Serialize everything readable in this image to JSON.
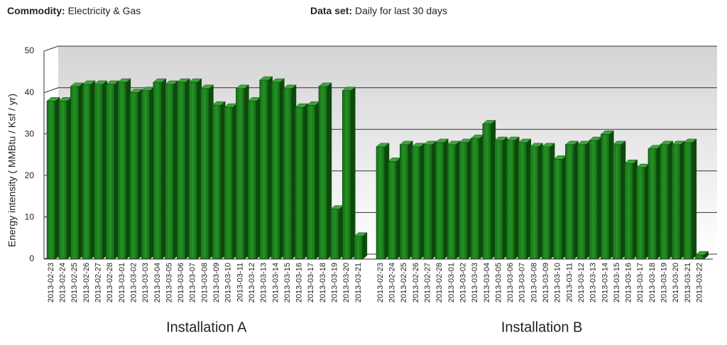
{
  "header": {
    "commodity_label": "Commodity:",
    "commodity": "Electricity & Gas",
    "dataset_label": "Data set:",
    "dataset": "Daily for last 30 days"
  },
  "chart_data": {
    "type": "bar",
    "y_label": "Energy intensity ( MMBtu / Ksf / yr)",
    "color": "#1e7a1e",
    "ylim": [
      0,
      50
    ],
    "yticks": [
      0,
      10,
      20,
      30,
      40,
      50
    ],
    "grid": true,
    "groups": [
      {
        "name": "Installation A",
        "categories": [
          "2013-02-23",
          "2013-02-24",
          "2013-02-25",
          "2013-02-26",
          "2013-02-27",
          "2013-02-28",
          "2013-03-01",
          "2013-03-02",
          "2013-03-03",
          "2013-03-04",
          "2013-03-05",
          "2013-03-06",
          "2013-03-07",
          "2013-03-08",
          "2013-03-09",
          "2013-03-10",
          "2013-03-11",
          "2013-03-12",
          "2013-03-13",
          "2013-03-14",
          "2013-03-15",
          "2013-03-16",
          "2013-03-17",
          "2013-03-18",
          "2013-03-19",
          "2013-03-20",
          "2013-03-21"
        ],
        "values": [
          38,
          38,
          41.5,
          42,
          42,
          42,
          42.5,
          40,
          40.5,
          42.5,
          42,
          42.5,
          42.5,
          41,
          37,
          36.5,
          41,
          38,
          43,
          42.5,
          41,
          36.5,
          37,
          41.5,
          12,
          40.5,
          5.5
        ]
      },
      {
        "name": "Installation B",
        "categories": [
          "2013-02-23",
          "2013-02-24",
          "2013-02-25",
          "2013-02-26",
          "2013-02-27",
          "2013-02-28",
          "2013-03-01",
          "2013-03-02",
          "2013-03-03",
          "2013-03-04",
          "2013-03-05",
          "2013-03-06",
          "2013-03-07",
          "2013-03-08",
          "2013-03-09",
          "2013-03-10",
          "2013-03-11",
          "2013-03-12",
          "2013-03-13",
          "2013-03-14",
          "2013-03-15",
          "2013-03-16",
          "2013-03-17",
          "2013-03-18",
          "2013-03-19",
          "2013-03-20",
          "2013-03-21",
          "2013-03-22"
        ],
        "values": [
          27,
          23.5,
          27.5,
          27,
          27.5,
          28,
          27.5,
          28,
          29,
          32.5,
          28.5,
          28.5,
          28,
          27,
          27,
          24,
          27.5,
          27.5,
          28.5,
          30,
          27.5,
          23,
          22,
          26.5,
          27.5,
          27.5,
          28,
          1
        ]
      }
    ]
  }
}
